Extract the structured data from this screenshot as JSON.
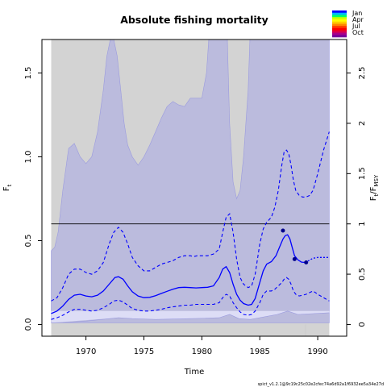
{
  "chart_data": {
    "type": "line",
    "title": "Absolute fishing mortality",
    "xlabel": "Time",
    "ylabel": "F",
    "ylabel_sub": "t",
    "y2label_main": "F",
    "y2label_sub1": "t",
    "y2label_mid": "/F",
    "y2label_sub2": "MSY",
    "xlim": [
      1966.2,
      1992.5
    ],
    "ylim": [
      -0.07,
      1.7
    ],
    "y2_scale": 0.6,
    "x_ticks": [
      1970,
      1975,
      1980,
      1985,
      1990
    ],
    "y_ticks": [
      0.0,
      0.5,
      1.0,
      1.5
    ],
    "y2_ticks": [
      0,
      0.5,
      1,
      1.5,
      2,
      2.5
    ],
    "fmsy_line": 0.6,
    "forecast_marker_x": 1988.95,
    "legend": {
      "entries": [
        "Jan",
        "Apr",
        "Jul",
        "Oct"
      ],
      "colors": [
        "#0000ff",
        "#00b4ff",
        "#00ff66",
        "#ccff00",
        "#ffff00",
        "#ffcc00",
        "#ff8800",
        "#ff3300",
        "#ff0000",
        "#dd0044",
        "#aa0088",
        "#770099"
      ]
    },
    "footer": "spict_v1.2.1@9c19c25c02e2cfec74a6d92a1f6932ee5a34e27d",
    "colors": {
      "outer_band": "#d3d3d3",
      "inner_band": "#bbbbdd",
      "bottom_band": "#ddddf6",
      "estimate": "#0000ff",
      "reference_line": "#000000",
      "marker_line": "#cccccc"
    },
    "series": [
      {
        "name": "Estimate",
        "style": "solid",
        "x": [
          1967.0,
          1967.5,
          1968.0,
          1968.5,
          1969.0,
          1969.5,
          1970.0,
          1970.5,
          1971.0,
          1971.5,
          1972.0,
          1972.5,
          1972.8,
          1973.2,
          1973.6,
          1974.0,
          1974.5,
          1975.0,
          1975.5,
          1976.0,
          1976.5,
          1977.0,
          1977.5,
          1978.0,
          1978.5,
          1979.0,
          1979.5,
          1980.0,
          1980.5,
          1981.0,
          1981.5,
          1981.8,
          1982.1,
          1982.4,
          1982.7,
          1983.0,
          1983.3,
          1983.6,
          1984.0,
          1984.3,
          1984.6,
          1985.0,
          1985.3,
          1985.6,
          1986.0,
          1986.4,
          1986.7,
          1987.0,
          1987.2,
          1987.4,
          1987.6,
          1987.8,
          1988.0,
          1988.3,
          1988.6,
          1988.9,
          1989.2,
          1989.6,
          1990.0,
          1990.5,
          1991.0
        ],
        "y": [
          0.065,
          0.08,
          0.11,
          0.15,
          0.175,
          0.18,
          0.17,
          0.165,
          0.175,
          0.2,
          0.24,
          0.28,
          0.285,
          0.27,
          0.23,
          0.195,
          0.17,
          0.16,
          0.162,
          0.172,
          0.185,
          0.198,
          0.21,
          0.22,
          0.222,
          0.22,
          0.218,
          0.22,
          0.222,
          0.23,
          0.28,
          0.33,
          0.345,
          0.31,
          0.24,
          0.18,
          0.145,
          0.125,
          0.115,
          0.12,
          0.155,
          0.25,
          0.32,
          0.36,
          0.375,
          0.41,
          0.46,
          0.51,
          0.53,
          0.535,
          0.51,
          0.46,
          0.41,
          0.385,
          0.372,
          0.37,
          0.38,
          0.395,
          0.4,
          0.4,
          0.4
        ]
      },
      {
        "name": "Upper CI",
        "style": "dashed",
        "x": [
          1967.0,
          1967.5,
          1968.0,
          1968.5,
          1969.0,
          1969.5,
          1970.0,
          1970.5,
          1971.0,
          1971.5,
          1972.0,
          1972.4,
          1972.8,
          1973.2,
          1973.6,
          1974.0,
          1974.5,
          1975.0,
          1975.5,
          1976.0,
          1976.5,
          1977.0,
          1977.5,
          1978.0,
          1978.5,
          1979.0,
          1979.3,
          1979.6,
          1980.0,
          1980.5,
          1981.0,
          1981.5,
          1981.8,
          1982.1,
          1982.4,
          1982.7,
          1983.0,
          1983.3,
          1983.6,
          1984.0,
          1984.3,
          1984.6,
          1985.0,
          1985.3,
          1985.6,
          1986.0,
          1986.3,
          1986.6,
          1986.9,
          1987.1,
          1987.3,
          1987.5,
          1987.7,
          1987.9,
          1988.1,
          1988.4,
          1988.7,
          1989.0,
          1989.3,
          1989.6,
          1990.0,
          1990.5,
          1991.0
        ],
        "y": [
          0.14,
          0.16,
          0.22,
          0.3,
          0.33,
          0.33,
          0.31,
          0.3,
          0.32,
          0.37,
          0.48,
          0.55,
          0.58,
          0.55,
          0.48,
          0.4,
          0.35,
          0.32,
          0.32,
          0.34,
          0.36,
          0.37,
          0.38,
          0.4,
          0.41,
          0.41,
          0.405,
          0.41,
          0.41,
          0.41,
          0.42,
          0.45,
          0.55,
          0.64,
          0.66,
          0.55,
          0.39,
          0.28,
          0.24,
          0.22,
          0.23,
          0.3,
          0.48,
          0.57,
          0.61,
          0.64,
          0.7,
          0.8,
          0.95,
          1.03,
          1.04,
          1.02,
          0.95,
          0.86,
          0.8,
          0.77,
          0.76,
          0.76,
          0.77,
          0.8,
          0.9,
          1.04,
          1.15
        ]
      },
      {
        "name": "Lower CI",
        "style": "dashed",
        "x": [
          1967.0,
          1967.5,
          1968.0,
          1968.5,
          1969.0,
          1969.5,
          1970.0,
          1970.5,
          1971.0,
          1971.5,
          1972.0,
          1972.4,
          1972.8,
          1973.2,
          1973.6,
          1974.0,
          1974.5,
          1975.0,
          1975.5,
          1976.0,
          1976.5,
          1977.0,
          1977.5,
          1978.0,
          1978.5,
          1979.0,
          1979.5,
          1980.0,
          1980.5,
          1981.0,
          1981.5,
          1981.8,
          1982.1,
          1982.4,
          1982.7,
          1983.0,
          1983.3,
          1983.6,
          1984.0,
          1984.3,
          1984.6,
          1985.0,
          1985.3,
          1985.6,
          1986.0,
          1986.3,
          1986.6,
          1986.9,
          1987.1,
          1987.3,
          1987.5,
          1987.7,
          1987.9,
          1988.1,
          1988.4,
          1988.7,
          1989.0,
          1989.3,
          1989.6,
          1990.0,
          1990.5,
          1991.0
        ],
        "y": [
          0.03,
          0.04,
          0.055,
          0.075,
          0.09,
          0.09,
          0.085,
          0.08,
          0.085,
          0.1,
          0.12,
          0.14,
          0.145,
          0.135,
          0.115,
          0.095,
          0.085,
          0.08,
          0.08,
          0.085,
          0.09,
          0.1,
          0.105,
          0.11,
          0.115,
          0.115,
          0.12,
          0.12,
          0.12,
          0.12,
          0.13,
          0.16,
          0.18,
          0.17,
          0.13,
          0.1,
          0.075,
          0.06,
          0.055,
          0.06,
          0.08,
          0.13,
          0.18,
          0.2,
          0.2,
          0.21,
          0.23,
          0.25,
          0.27,
          0.28,
          0.27,
          0.24,
          0.2,
          0.18,
          0.17,
          0.175,
          0.18,
          0.19,
          0.2,
          0.18,
          0.16,
          0.14
        ]
      },
      {
        "name": "Outer band upper",
        "style": "band",
        "x": [
          1967.0,
          1967.3,
          1967.6,
          1968.0,
          1968.5,
          1969.0,
          1969.5,
          1970.0,
          1970.5,
          1971.0,
          1971.5,
          1971.8,
          1972.1,
          1972.4,
          1972.7,
          1973.0,
          1973.3,
          1973.6,
          1974.0,
          1974.5,
          1975.0,
          1975.5,
          1976.0,
          1976.5,
          1977.0,
          1977.5,
          1978.0,
          1978.5,
          1979.0,
          1979.3,
          1979.6,
          1980.0,
          1980.4,
          1980.8,
          1981.2,
          1981.5,
          1981.8,
          1982.0,
          1982.2,
          1982.4,
          1982.7,
          1983.0,
          1983.3,
          1983.6,
          1984.0,
          1984.3,
          1984.6,
          1984.9,
          1985.2,
          1985.5,
          1985.8,
          1986.1,
          1986.4,
          1986.7,
          1987.0,
          1988.0,
          1989.0,
          1990.0,
          1991.0
        ],
        "y": [
          0.44,
          0.46,
          0.55,
          0.8,
          1.05,
          1.08,
          1.0,
          0.96,
          1.0,
          1.15,
          1.4,
          1.6,
          1.7,
          1.7,
          1.6,
          1.4,
          1.2,
          1.07,
          1.0,
          0.95,
          1.0,
          1.07,
          1.15,
          1.23,
          1.3,
          1.33,
          1.31,
          1.3,
          1.35,
          1.35,
          1.35,
          1.35,
          1.5,
          1.9,
          2.6,
          2.8,
          2.6,
          2.2,
          1.7,
          1.2,
          0.85,
          0.75,
          0.8,
          1.0,
          1.4,
          2.0,
          2.5,
          2.8,
          2.8,
          2.8,
          2.8,
          2.8,
          2.8,
          2.8,
          2.8,
          2.8,
          2.8,
          2.8,
          2.8
        ]
      }
    ],
    "points": [
      {
        "x": 1987.0,
        "y": 0.56
      },
      {
        "x": 1988.0,
        "y": 0.39
      },
      {
        "x": 1989.0,
        "y": 0.37
      }
    ]
  }
}
